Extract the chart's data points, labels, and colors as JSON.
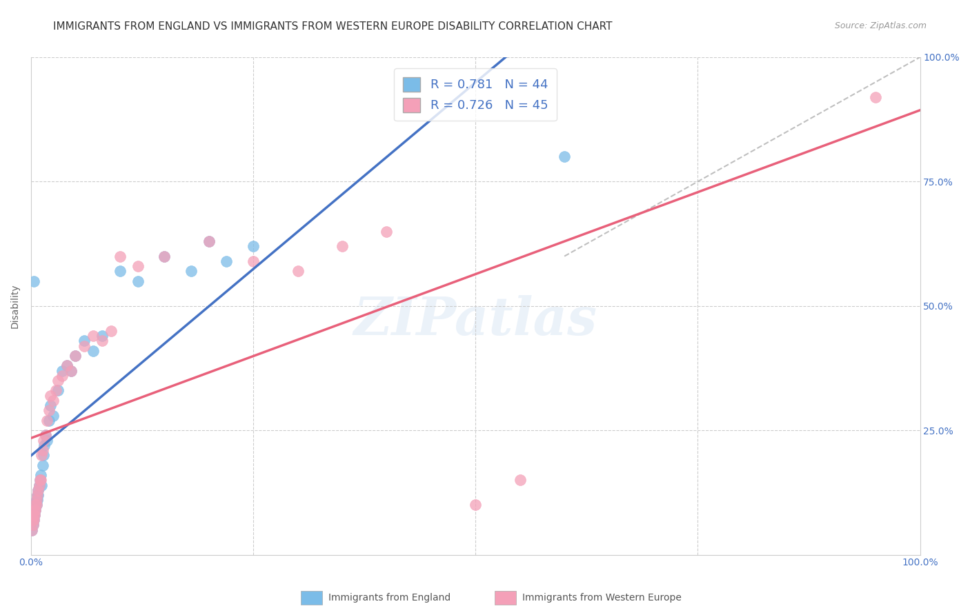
{
  "title": "IMMIGRANTS FROM ENGLAND VS IMMIGRANTS FROM WESTERN EUROPE DISABILITY CORRELATION CHART",
  "source": "Source: ZipAtlas.com",
  "ylabel": "Disability",
  "r_england": 0.781,
  "n_england": 44,
  "r_western": 0.726,
  "n_western": 45,
  "color_england": "#7bbce8",
  "color_western": "#f4a0b8",
  "color_england_line": "#4472c4",
  "color_western_line": "#e8607a",
  "color_axis_labels": "#4472c4",
  "watermark": "ZIPatlas",
  "england_x": [
    0.001,
    0.002,
    0.002,
    0.003,
    0.003,
    0.004,
    0.004,
    0.005,
    0.005,
    0.006,
    0.006,
    0.007,
    0.007,
    0.008,
    0.008,
    0.009,
    0.01,
    0.011,
    0.012,
    0.013,
    0.014,
    0.015,
    0.016,
    0.018,
    0.02,
    0.022,
    0.025,
    0.03,
    0.035,
    0.04,
    0.045,
    0.05,
    0.06,
    0.07,
    0.08,
    0.1,
    0.12,
    0.15,
    0.18,
    0.2,
    0.22,
    0.25,
    0.6,
    0.003
  ],
  "england_y": [
    0.05,
    0.06,
    0.07,
    0.07,
    0.08,
    0.08,
    0.09,
    0.09,
    0.1,
    0.1,
    0.11,
    0.11,
    0.12,
    0.12,
    0.13,
    0.14,
    0.15,
    0.16,
    0.14,
    0.18,
    0.2,
    0.22,
    0.24,
    0.23,
    0.27,
    0.3,
    0.28,
    0.33,
    0.37,
    0.38,
    0.37,
    0.4,
    0.43,
    0.41,
    0.44,
    0.57,
    0.55,
    0.6,
    0.57,
    0.63,
    0.59,
    0.62,
    0.8,
    0.55
  ],
  "western_x": [
    0.001,
    0.002,
    0.002,
    0.003,
    0.003,
    0.004,
    0.004,
    0.005,
    0.005,
    0.006,
    0.006,
    0.007,
    0.008,
    0.009,
    0.01,
    0.011,
    0.012,
    0.013,
    0.014,
    0.016,
    0.018,
    0.02,
    0.022,
    0.025,
    0.028,
    0.03,
    0.035,
    0.04,
    0.045,
    0.05,
    0.06,
    0.07,
    0.08,
    0.09,
    0.1,
    0.12,
    0.15,
    0.2,
    0.25,
    0.3,
    0.35,
    0.4,
    0.5,
    0.55,
    0.95
  ],
  "western_y": [
    0.05,
    0.06,
    0.07,
    0.07,
    0.08,
    0.08,
    0.09,
    0.09,
    0.1,
    0.1,
    0.11,
    0.12,
    0.13,
    0.14,
    0.15,
    0.15,
    0.2,
    0.21,
    0.23,
    0.24,
    0.27,
    0.29,
    0.32,
    0.31,
    0.33,
    0.35,
    0.36,
    0.38,
    0.37,
    0.4,
    0.42,
    0.44,
    0.43,
    0.45,
    0.6,
    0.58,
    0.6,
    0.63,
    0.59,
    0.57,
    0.62,
    0.65,
    0.1,
    0.15,
    0.92
  ],
  "xlim": [
    0.0,
    1.0
  ],
  "ylim": [
    0.0,
    1.0
  ],
  "xticks": [
    0.0,
    0.25,
    0.5,
    0.75,
    1.0
  ],
  "xtick_labels": [
    "0.0%",
    "",
    "",
    "",
    "100.0%"
  ],
  "yticks_right": [
    0.25,
    0.5,
    0.75,
    1.0
  ],
  "ytick_labels_right": [
    "25.0%",
    "50.0%",
    "75.0%",
    "100.0%"
  ],
  "title_fontsize": 11,
  "source_fontsize": 9,
  "label_fontsize": 10,
  "legend_fontsize": 13,
  "background_color": "#ffffff",
  "grid_color": "#cccccc",
  "legend_label_england": "Immigrants from England",
  "legend_label_western": "Immigrants from Western Europe"
}
